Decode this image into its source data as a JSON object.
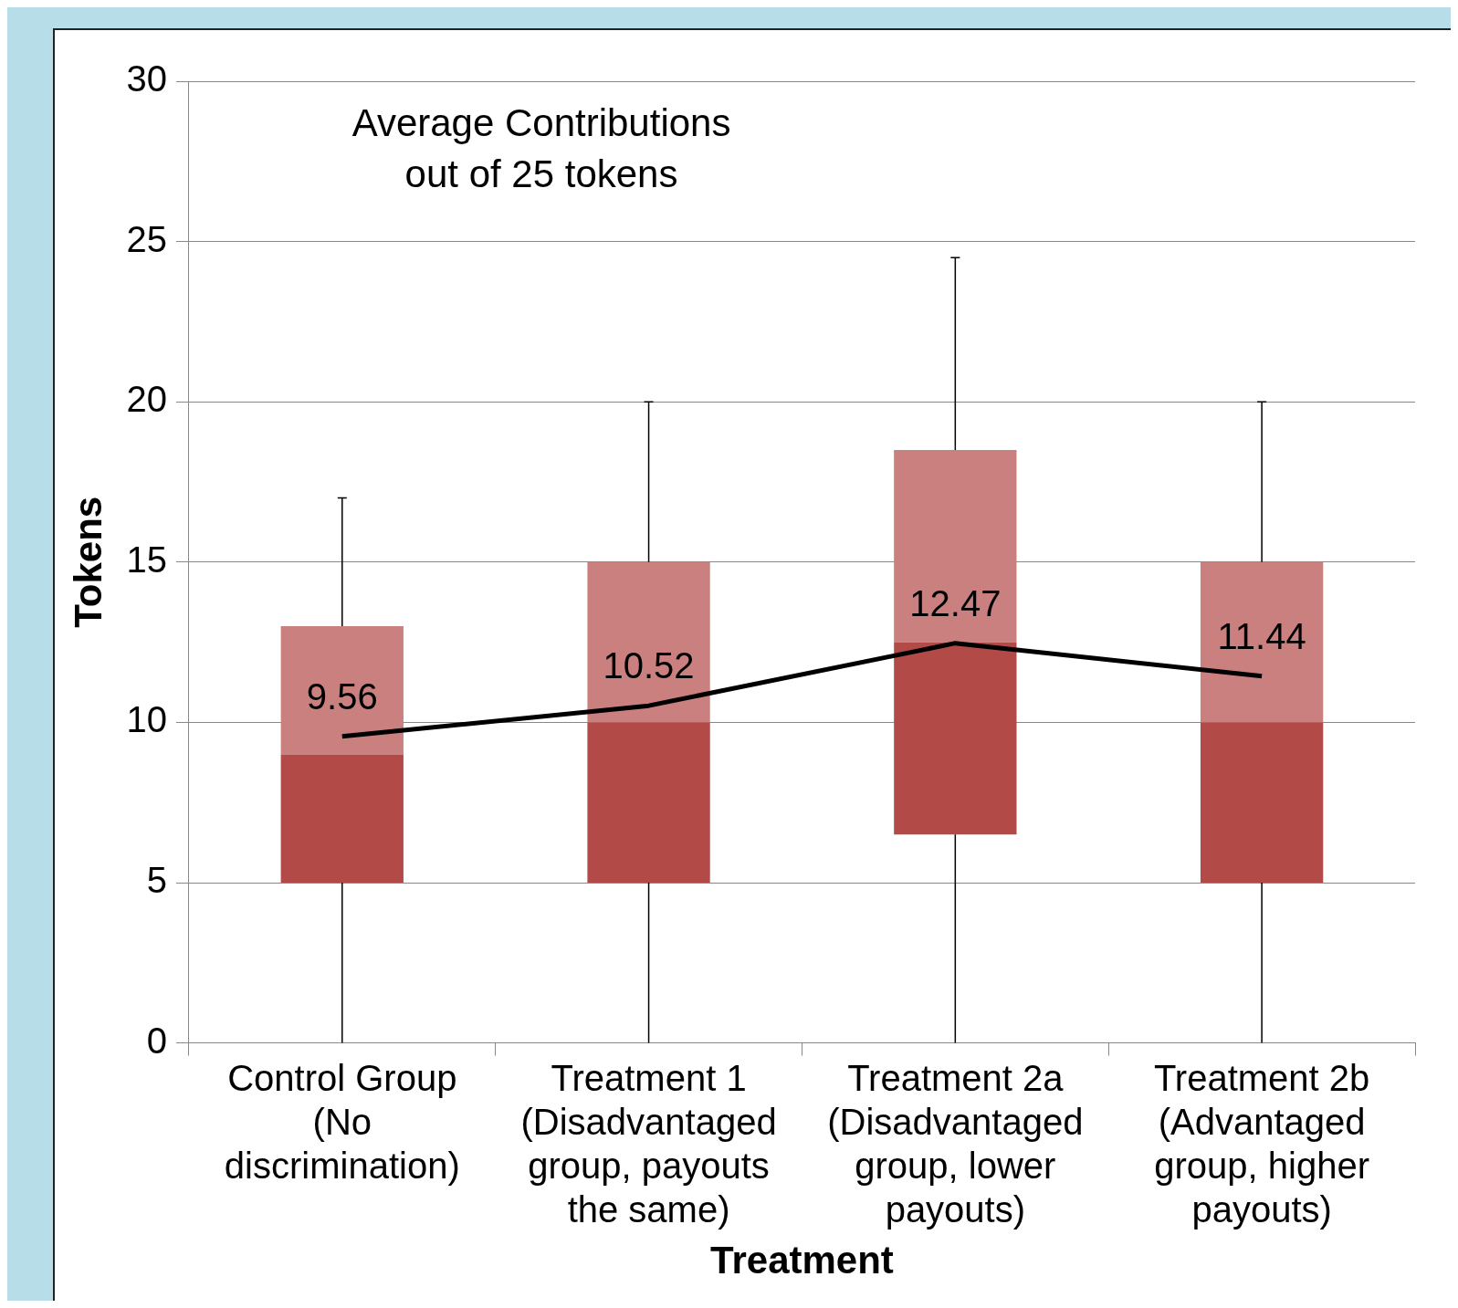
{
  "chart_data": {
    "type": "box",
    "title": "Average Contributions\nout of 25 tokens",
    "xlabel": "Treatment",
    "ylabel": "Tokens",
    "categories": [
      "Control Group (No discrimination)",
      "Treatment 1 (Disadvantaged group, payouts the same)",
      "Treatment 2a (Disadvantaged group, lower payouts)",
      "Treatment 2b (Advantaged group, higher payouts)"
    ],
    "series": [
      {
        "color": "#b24a48",
        "boxes": [
          {
            "low": 0,
            "q1": 5,
            "median": 9,
            "q3": 13,
            "high": 17
          },
          {
            "low": 0,
            "q1": 5,
            "median": 10,
            "q3": 15,
            "high": 20
          },
          {
            "low": 0,
            "q1": 6.5,
            "median": 12.5,
            "q3": 18.5,
            "high": 24.5
          },
          {
            "low": 0,
            "q1": 5,
            "median": 10,
            "q3": 15,
            "high": 20
          }
        ]
      },
      {
        "type": "line",
        "color": "#000000",
        "values": [
          9.56,
          10.52,
          12.47,
          11.44
        ],
        "value_labels": [
          "9.56",
          "10.52",
          "12.47",
          "11.44"
        ]
      }
    ],
    "ylim": [
      0,
      30
    ],
    "yticks": [
      0,
      5,
      10,
      15,
      20,
      25,
      30
    ],
    "grid": "y",
    "legend": false,
    "marker": "none"
  }
}
